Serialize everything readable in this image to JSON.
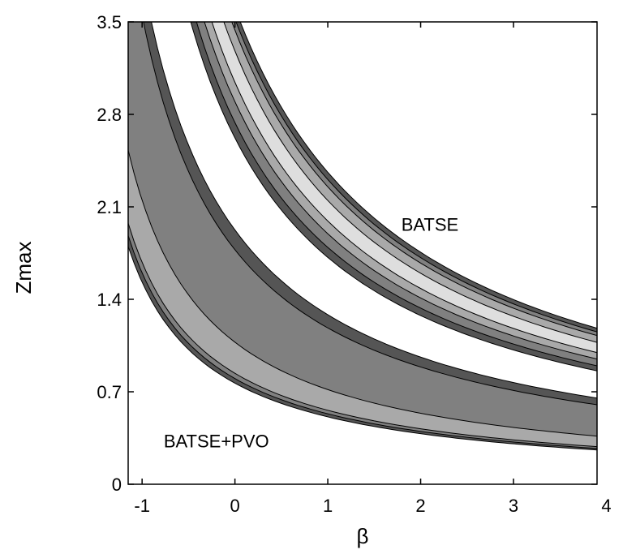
{
  "chart_data": {
    "type": "contour",
    "xlabel": "β",
    "ylabel": "Zmax",
    "xlim": [
      -1.15,
      3.9
    ],
    "ylim": [
      0,
      3.5
    ],
    "x_ticks": [
      -1,
      0,
      1,
      2,
      3,
      4
    ],
    "x_tick_labels": [
      "-1",
      "0",
      "1",
      "2",
      "3",
      "4"
    ],
    "y_ticks": [
      0,
      0.7,
      1.4,
      2.1,
      2.8,
      3.5
    ],
    "y_tick_labels": [
      "0",
      "0.7",
      "1.4",
      "2.1",
      "2.8",
      "3.5"
    ],
    "grid": false,
    "legend": "none",
    "colors": {
      "level1": "#555555",
      "level2": "#808080",
      "level3": "#a9a9a9",
      "level4": "#dedede"
    },
    "annotations": [
      {
        "text": "BATSE",
        "x": 2.1,
        "y": 1.92
      },
      {
        "text": "BATSE+PVO",
        "x": -0.2,
        "y": 0.28
      }
    ],
    "regions": [
      {
        "name": "BATSE",
        "type": "hyperbolic-band",
        "x_offset": 1.9,
        "products": [
          {
            "level": 1,
            "lower": 4.98,
            "upper": 6.85
          },
          {
            "level": 2,
            "lower": 5.2,
            "upper": 6.69
          },
          {
            "level": 3,
            "lower": 5.5,
            "upper": 6.53
          },
          {
            "level": 4,
            "lower": 5.78,
            "upper": 6.23
          }
        ]
      },
      {
        "name": "BATSE+PVO",
        "type": "hyperbolic-band",
        "x_offset": 2.0,
        "products": [
          {
            "level": 1,
            "lower": 1.53,
            "upper": 3.85
          },
          {
            "level": 2,
            "lower": 1.6,
            "upper": 3.55
          },
          {
            "level": 3,
            "lower": 1.68,
            "upper": 2.15
          }
        ]
      }
    ]
  }
}
